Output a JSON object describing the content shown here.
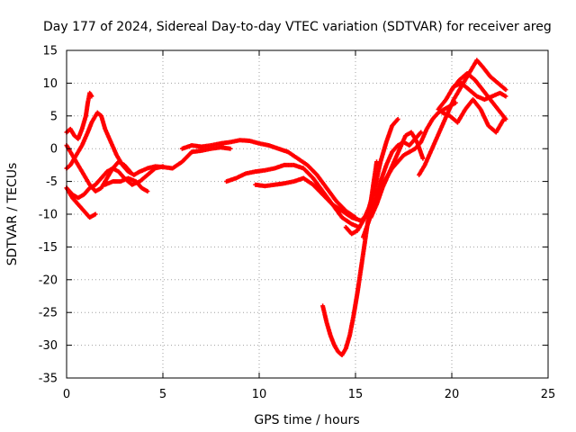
{
  "chart_data": {
    "type": "scatter",
    "title": "Day 177 of 2024, Sidereal Day-to-day VTEC variation (SDTVAR) for receiver areg",
    "xlabel": "GPS time / hours",
    "ylabel": "SDTVAR / TECUs",
    "xlim": [
      0,
      25
    ],
    "ylim": [
      -35,
      15
    ],
    "xticks": [
      0,
      5,
      10,
      15,
      20,
      25
    ],
    "yticks": [
      -35,
      -30,
      -25,
      -20,
      -15,
      -10,
      -5,
      0,
      5,
      10,
      15
    ],
    "grid": true,
    "marker": "plus",
    "color": "#ff0000",
    "series": [
      {
        "x": [
          0.0,
          0.2,
          0.4,
          0.6,
          0.8,
          1.0,
          1.1,
          1.2,
          1.3
        ],
        "y": [
          2.5,
          3.0,
          2.0,
          1.5,
          3.0,
          5.0,
          7.0,
          8.5,
          8.0
        ]
      },
      {
        "x": [
          0.0,
          0.2,
          0.5,
          0.8,
          1.1,
          1.3,
          1.6,
          1.8
        ],
        "y": [
          -3.0,
          -2.5,
          -1.0,
          0.5,
          2.5,
          4.0,
          5.5,
          5.0
        ]
      },
      {
        "x": [
          1.8,
          2.0,
          2.3,
          2.6,
          2.9,
          3.2,
          3.5,
          3.8,
          4.2,
          4.6,
          5.0,
          5.5,
          6.0,
          6.5
        ],
        "y": [
          5.0,
          3.0,
          1.0,
          -1.0,
          -2.5,
          -3.5,
          -4.0,
          -3.5,
          -3.0,
          -2.7,
          -2.8,
          -3.0,
          -2.0,
          -0.5
        ]
      },
      {
        "x": [
          0.0,
          0.3,
          0.6,
          0.9,
          1.2,
          1.5,
          1.8,
          2.1,
          2.4,
          2.7,
          3.0,
          3.3
        ],
        "y": [
          0.5,
          -1.0,
          -2.5,
          -4.0,
          -5.5,
          -6.5,
          -6.0,
          -4.5,
          -3.0,
          -2.0,
          -2.5,
          -3.5
        ]
      },
      {
        "x": [
          0.0,
          0.3,
          0.6,
          0.9,
          1.2,
          1.5,
          1.8,
          2.1,
          2.4,
          2.7,
          3.0,
          3.4,
          3.8,
          4.2,
          4.6,
          5.0
        ],
        "y": [
          -6.0,
          -7.0,
          -7.5,
          -7.0,
          -6.0,
          -5.5,
          -4.5,
          -3.5,
          -3.0,
          -3.5,
          -4.5,
          -5.5,
          -5.0,
          -4.0,
          -3.0,
          -2.7
        ]
      },
      {
        "x": [
          0.0,
          0.3,
          0.6,
          0.9,
          1.2,
          1.5
        ],
        "y": [
          -6.0,
          -7.5,
          -8.5,
          -9.5,
          -10.5,
          -10.0
        ]
      },
      {
        "x": [
          2.0,
          2.4,
          2.8,
          3.2,
          3.6,
          3.9,
          4.2
        ],
        "y": [
          -5.5,
          -5.0,
          -5.0,
          -4.5,
          -5.0,
          -6.0,
          -6.5
        ]
      },
      {
        "x": [
          6.0,
          6.5,
          7.0,
          7.5,
          8.0,
          8.5,
          9.0,
          9.5,
          10.0,
          10.5,
          11.0,
          11.5,
          12.0,
          12.5,
          13.0,
          13.5,
          14.0,
          14.5,
          15.0
        ],
        "y": [
          0.0,
          0.5,
          0.3,
          0.5,
          0.8,
          1.0,
          1.3,
          1.2,
          0.8,
          0.5,
          0.0,
          -0.5,
          -1.5,
          -2.5,
          -4.0,
          -6.0,
          -8.0,
          -9.5,
          -10.5
        ]
      },
      {
        "x": [
          6.5,
          7.0,
          7.5,
          8.0,
          8.5
        ],
        "y": [
          -0.5,
          -0.3,
          0.0,
          0.2,
          0.0
        ]
      },
      {
        "x": [
          8.3,
          8.8,
          9.3,
          9.8,
          10.3,
          10.8,
          11.3,
          11.8,
          12.3,
          12.8,
          13.3,
          13.8,
          14.3,
          14.8,
          15.2
        ],
        "y": [
          -5.0,
          -4.5,
          -3.8,
          -3.5,
          -3.3,
          -3.0,
          -2.5,
          -2.5,
          -3.0,
          -4.5,
          -6.5,
          -8.5,
          -10.5,
          -11.5,
          -12.0
        ]
      },
      {
        "x": [
          9.8,
          10.3,
          10.8,
          11.3,
          11.8,
          12.3,
          12.8,
          13.3,
          13.8,
          14.3,
          14.8,
          15.3,
          15.6
        ],
        "y": [
          -5.5,
          -5.7,
          -5.5,
          -5.3,
          -5.0,
          -4.5,
          -5.5,
          -7.0,
          -8.5,
          -9.5,
          -10.5,
          -11.0,
          -10.0
        ]
      },
      {
        "x": [
          13.3,
          13.5,
          13.7,
          13.9,
          14.1,
          14.3,
          14.5,
          14.7,
          14.9,
          15.1,
          15.3,
          15.5,
          15.7,
          15.9,
          16.1
        ],
        "y": [
          -24.0,
          -26.5,
          -28.5,
          -30.0,
          -31.0,
          -31.5,
          -30.5,
          -28.5,
          -25.5,
          -22.0,
          -18.0,
          -14.0,
          -10.0,
          -6.0,
          -2.0
        ]
      },
      {
        "x": [
          14.5,
          14.8,
          15.1,
          15.4,
          15.7,
          16.0,
          16.3,
          16.6,
          16.9,
          17.2
        ],
        "y": [
          -12.0,
          -13.0,
          -12.5,
          -11.0,
          -9.0,
          -6.0,
          -2.0,
          1.0,
          3.5,
          4.5
        ]
      },
      {
        "x": [
          15.4,
          15.7,
          16.0,
          16.3,
          16.6,
          16.9,
          17.2,
          17.5,
          17.8,
          18.1,
          18.4
        ],
        "y": [
          -13.5,
          -11.0,
          -8.0,
          -5.0,
          -2.5,
          -0.5,
          0.5,
          1.0,
          0.5,
          1.5,
          2.5
        ]
      },
      {
        "x": [
          15.8,
          16.1,
          16.4,
          16.7,
          17.0,
          17.3,
          17.6,
          17.9,
          18.2,
          18.5
        ],
        "y": [
          -10.5,
          -8.5,
          -6.0,
          -4.0,
          -2.0,
          0.0,
          2.0,
          2.5,
          1.0,
          -1.5
        ]
      },
      {
        "x": [
          16.3,
          16.6,
          16.9,
          17.2,
          17.5,
          17.8,
          18.1,
          18.4,
          18.7,
          19.0,
          19.3,
          19.6,
          19.9,
          20.2
        ],
        "y": [
          -6.0,
          -4.5,
          -3.0,
          -2.0,
          -1.0,
          -0.5,
          0.0,
          1.0,
          3.0,
          4.5,
          5.5,
          6.0,
          6.5,
          7.0
        ]
      },
      {
        "x": [
          18.3,
          18.6,
          18.9,
          19.2,
          19.5,
          19.8,
          20.1,
          20.4,
          20.7,
          21.0,
          21.3,
          21.6,
          22.0,
          22.4,
          22.8
        ],
        "y": [
          -4.0,
          -2.5,
          -0.5,
          1.5,
          3.5,
          5.5,
          7.5,
          9.0,
          10.5,
          12.0,
          13.5,
          12.5,
          11.0,
          10.0,
          9.0
        ]
      },
      {
        "x": [
          19.3,
          19.7,
          20.1,
          20.5,
          20.9,
          21.3,
          21.7,
          22.1,
          22.5,
          22.8
        ],
        "y": [
          6.0,
          7.5,
          9.5,
          10.0,
          9.0,
          8.0,
          7.5,
          8.0,
          8.5,
          8.0
        ]
      },
      {
        "x": [
          19.5,
          19.9,
          20.3,
          20.7,
          21.1,
          21.5,
          21.9,
          22.3,
          22.7
        ],
        "y": [
          5.5,
          5.0,
          4.0,
          6.0,
          7.5,
          6.0,
          3.5,
          2.5,
          4.5
        ]
      },
      {
        "x": [
          20.0,
          20.4,
          20.8,
          21.2,
          21.6,
          22.0,
          22.4,
          22.8
        ],
        "y": [
          9.0,
          10.5,
          11.5,
          10.5,
          9.0,
          7.5,
          6.0,
          4.5
        ]
      }
    ]
  }
}
